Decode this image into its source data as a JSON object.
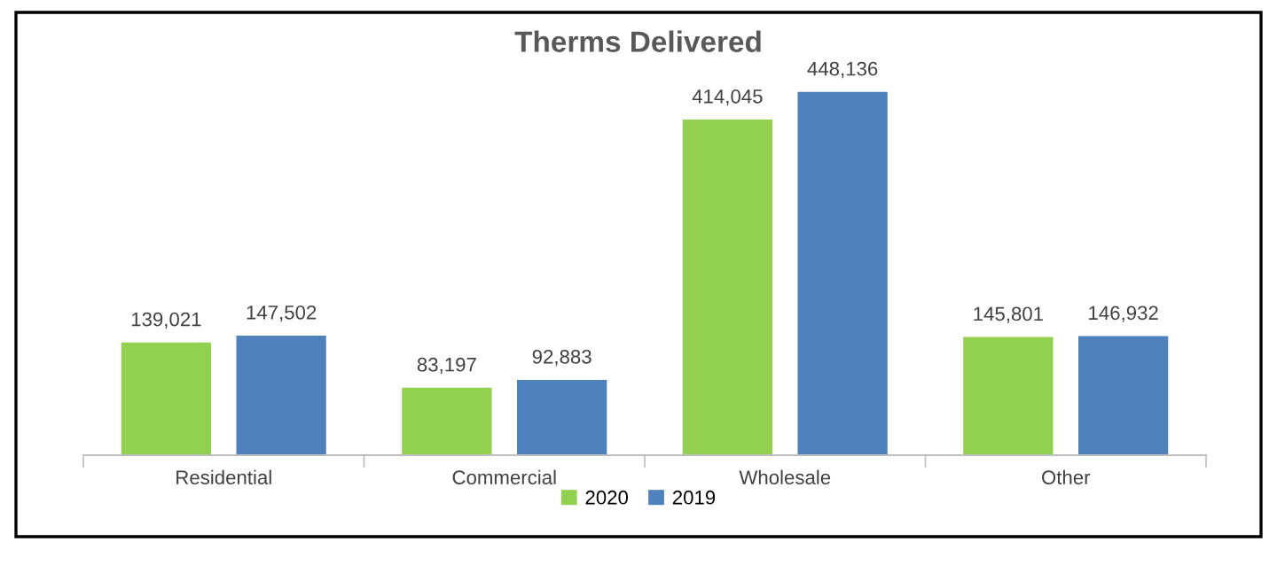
{
  "chart_data": {
    "type": "bar",
    "title": "Therms Delivered",
    "categories": [
      "Residential",
      "Commercial",
      "Wholesale",
      "Other"
    ],
    "series": [
      {
        "name": "2020",
        "color": "#92d050",
        "values": [
          139021,
          83197,
          414045,
          145801
        ],
        "value_labels": [
          "139,021",
          "83,197",
          "414,045",
          "145,801"
        ]
      },
      {
        "name": "2019",
        "color": "#4f81bd",
        "values": [
          147502,
          92883,
          448136,
          146932
        ],
        "value_labels": [
          "147,502",
          "92,883",
          "448,136",
          "146,932"
        ]
      }
    ],
    "legend": "bottom"
  }
}
